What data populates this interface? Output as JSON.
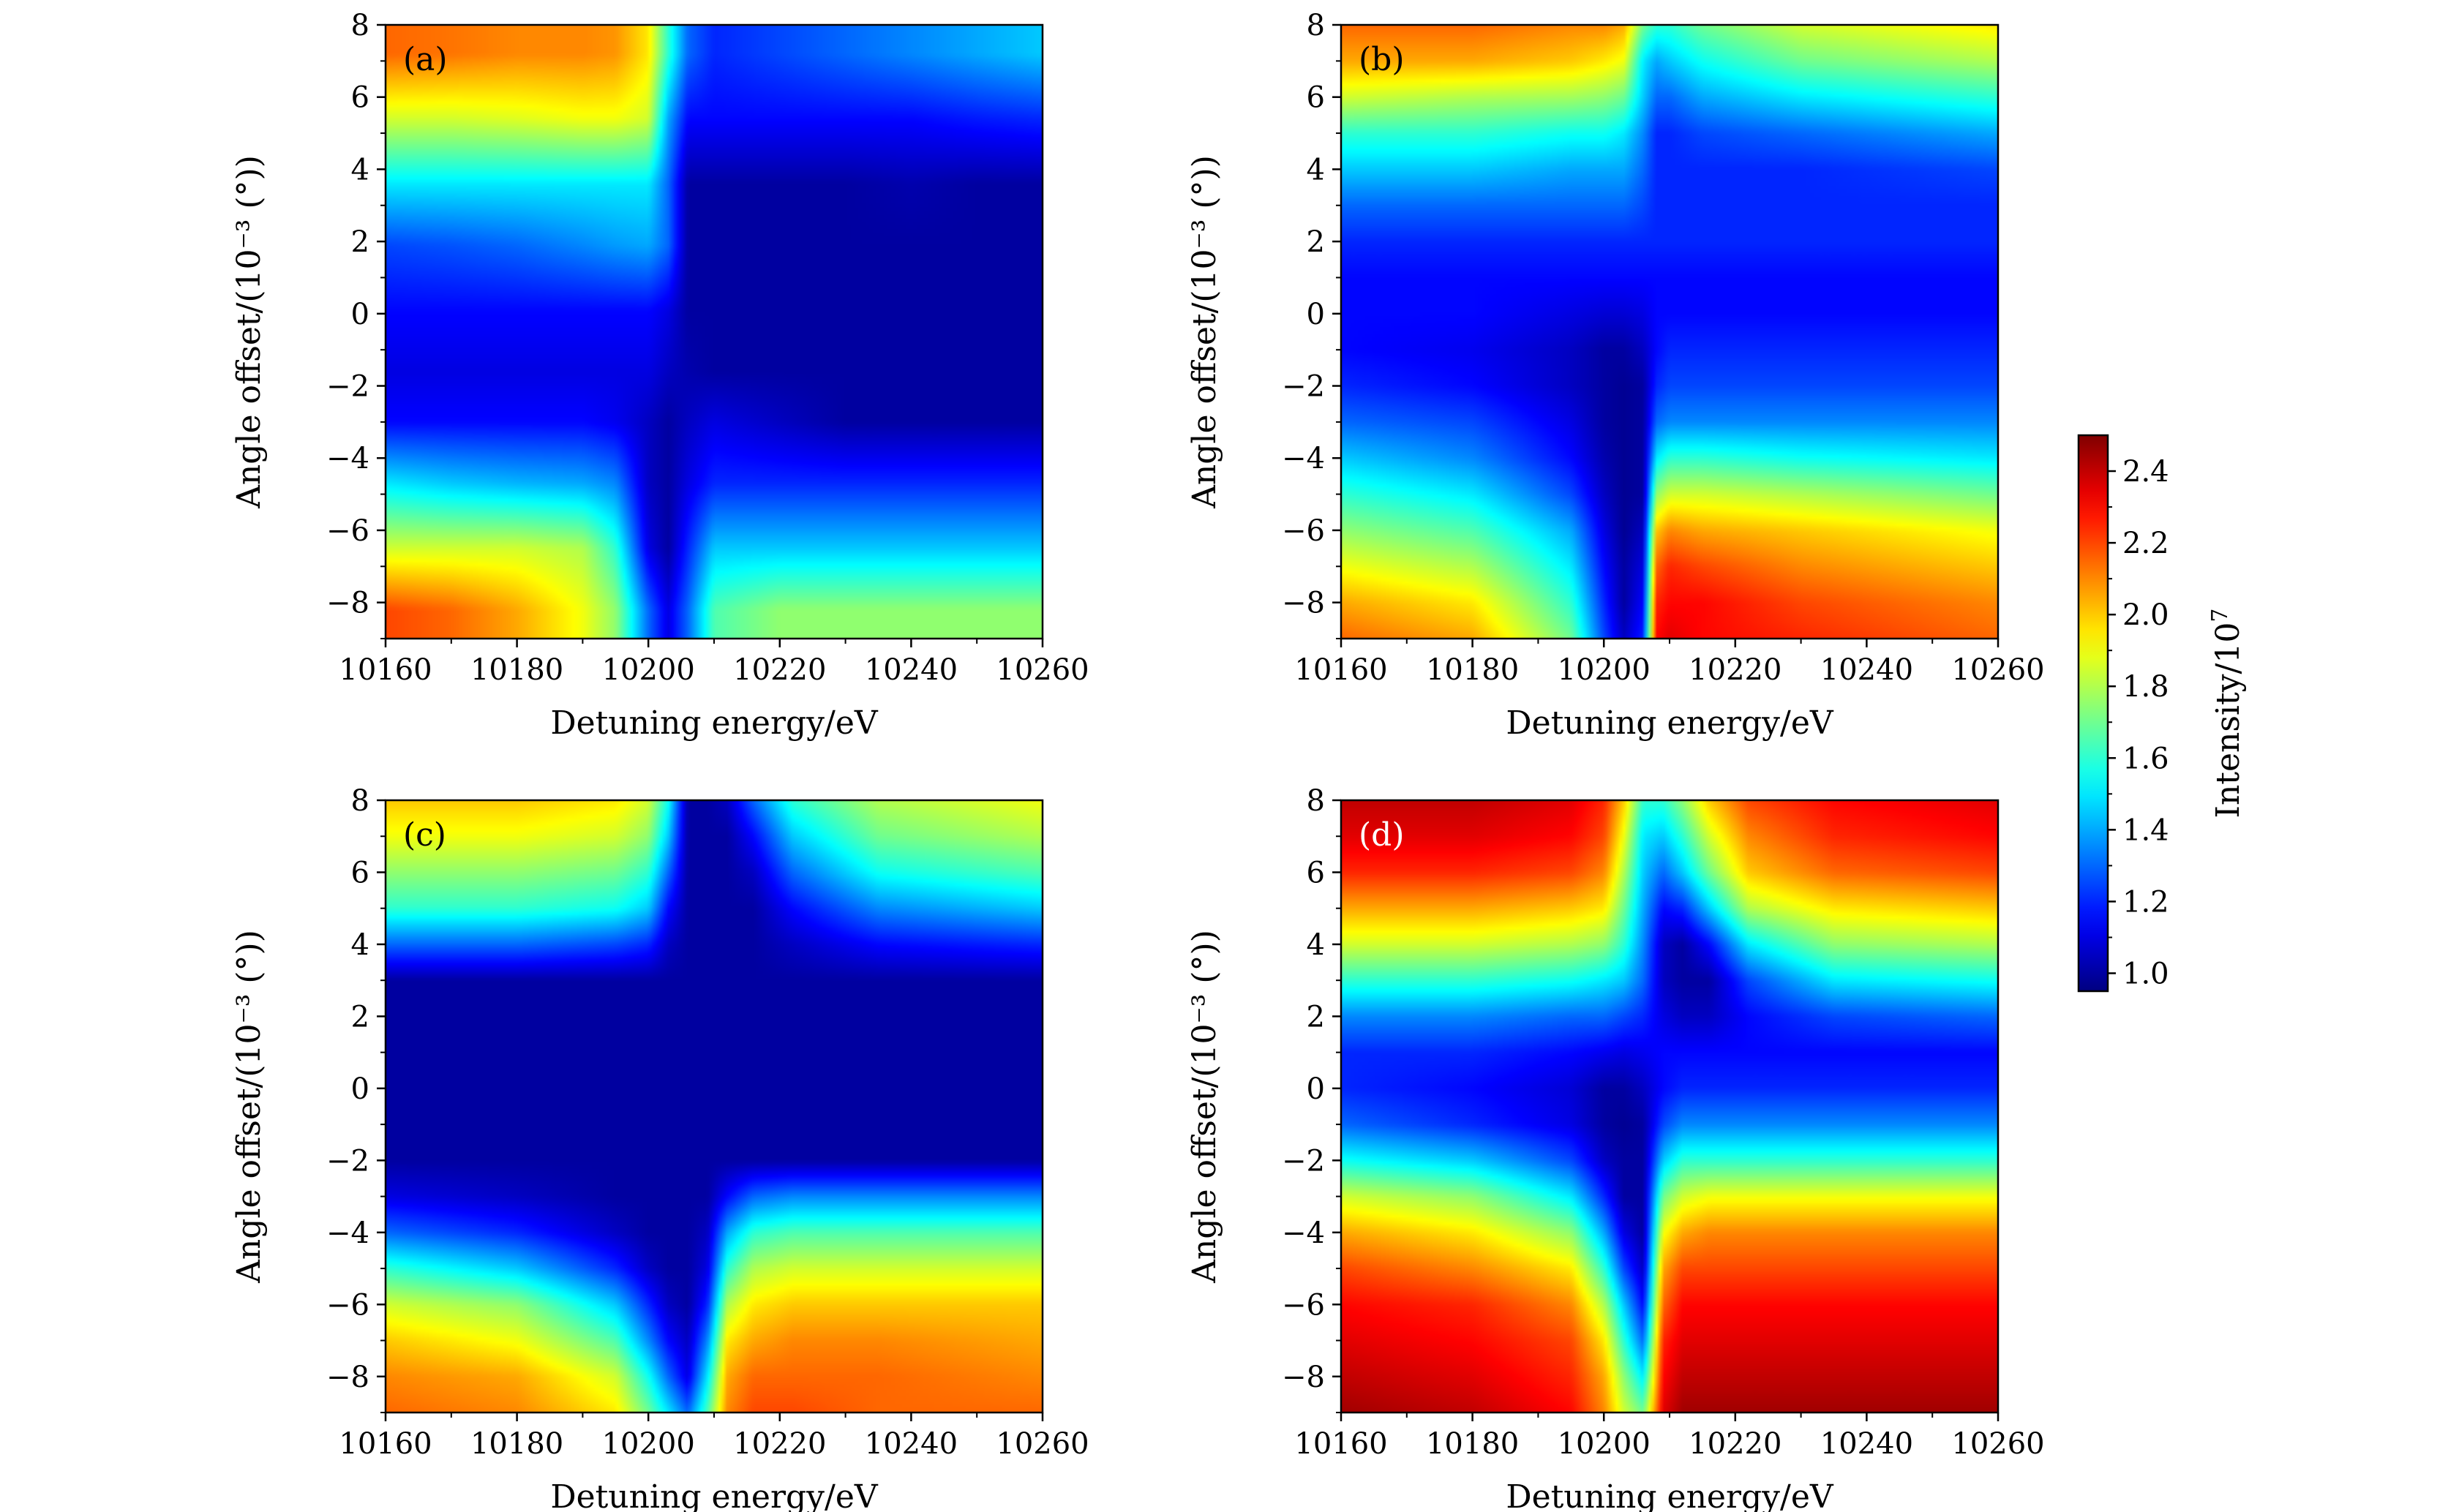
{
  "chart_data": [
    {
      "type": "heatmap",
      "panel_label": "(a)",
      "xlabel": "Detuning energy/eV",
      "ylabel": "Angle offset/(10⁻³ (°))",
      "xlim": [
        10160,
        10260
      ],
      "ylim": [
        -9,
        8
      ],
      "xticks": [
        "10160",
        "10180",
        "10200",
        "10220",
        "10240",
        "10260"
      ],
      "yticks": [
        "−8",
        "−6",
        "−4",
        "−2",
        "0",
        "2",
        "4",
        "6",
        "8"
      ],
      "x": [
        10160,
        10170,
        10180,
        10190,
        10195,
        10200,
        10203,
        10206,
        10210,
        10220,
        10230,
        10240,
        10250,
        10260
      ],
      "y": [
        7.2,
        5.4,
        3.6,
        1.9,
        0.1,
        -1.6,
        -3.0,
        -4.7,
        -6.5,
        -8.2
      ],
      "z": [
        [
          2.15,
          2.13,
          2.1,
          2.1,
          2.08,
          1.95,
          1.6,
          1.3,
          1.2,
          1.25,
          1.3,
          1.35,
          1.4,
          1.45
        ],
        [
          1.85,
          1.85,
          1.87,
          1.9,
          1.9,
          1.85,
          1.4,
          1.15,
          1.15,
          1.15,
          1.15,
          1.15,
          1.18,
          1.2
        ],
        [
          1.5,
          1.5,
          1.5,
          1.5,
          1.5,
          1.5,
          1.3,
          1.0,
          1.0,
          1.0,
          1.0,
          1.02,
          1.0,
          1.0
        ],
        [
          1.25,
          1.27,
          1.3,
          1.35,
          1.38,
          1.4,
          1.3,
          1.0,
          1.0,
          1.0,
          1.0,
          1.0,
          1.0,
          1.0
        ],
        [
          1.15,
          1.15,
          1.15,
          1.15,
          1.15,
          1.15,
          1.1,
          1.0,
          1.0,
          1.0,
          1.0,
          1.0,
          1.0,
          1.0
        ],
        [
          1.1,
          1.1,
          1.1,
          1.1,
          1.1,
          1.1,
          1.05,
          1.02,
          1.0,
          1.0,
          1.0,
          1.0,
          1.0,
          1.0
        ],
        [
          1.15,
          1.15,
          1.15,
          1.15,
          1.12,
          1.05,
          1.0,
          1.05,
          1.1,
          1.05,
          1.0,
          1.0,
          1.0,
          1.0
        ],
        [
          1.5,
          1.45,
          1.42,
          1.4,
          1.35,
          1.05,
          1.0,
          1.1,
          1.2,
          1.2,
          1.2,
          1.2,
          1.2,
          1.2
        ],
        [
          1.85,
          1.85,
          1.85,
          1.8,
          1.6,
          1.1,
          1.0,
          1.2,
          1.45,
          1.45,
          1.45,
          1.45,
          1.45,
          1.45
        ],
        [
          2.2,
          2.15,
          2.05,
          1.9,
          1.75,
          1.3,
          1.1,
          1.3,
          1.65,
          1.75,
          1.75,
          1.75,
          1.75,
          1.75
        ]
      ]
    },
    {
      "type": "heatmap",
      "panel_label": "(b)",
      "xlabel": "Detuning energy/eV",
      "ylabel": "Angle offset/(10⁻³ (°))",
      "xlim": [
        10160,
        10260
      ],
      "ylim": [
        -9,
        8
      ],
      "xticks": [
        "10160",
        "10180",
        "10200",
        "10220",
        "10240",
        "10260"
      ],
      "yticks": [
        "−8",
        "−6",
        "−4",
        "−2",
        "0",
        "2",
        "4",
        "6",
        "8"
      ],
      "x": [
        10160,
        10180,
        10195,
        10200,
        10203,
        10206,
        10208,
        10210,
        10215,
        10230,
        10260
      ],
      "y": [
        8,
        7,
        6,
        5,
        4,
        3,
        2,
        1,
        0,
        -1,
        -2,
        -3,
        -4,
        -5,
        -6,
        -7,
        -8,
        -9
      ],
      "z": [
        [
          2.15,
          2.15,
          2.1,
          2.1,
          2.05,
          1.7,
          1.6,
          1.6,
          1.7,
          1.85,
          1.95
        ],
        [
          2.05,
          2.05,
          2.0,
          1.95,
          1.9,
          1.5,
          1.4,
          1.45,
          1.55,
          1.7,
          1.8
        ],
        [
          1.85,
          1.8,
          1.78,
          1.75,
          1.7,
          1.45,
          1.3,
          1.3,
          1.4,
          1.5,
          1.6
        ],
        [
          1.6,
          1.6,
          1.55,
          1.55,
          1.5,
          1.35,
          1.2,
          1.2,
          1.25,
          1.3,
          1.4
        ],
        [
          1.45,
          1.45,
          1.4,
          1.4,
          1.4,
          1.3,
          1.2,
          1.2,
          1.2,
          1.2,
          1.25
        ],
        [
          1.3,
          1.3,
          1.3,
          1.3,
          1.3,
          1.25,
          1.2,
          1.2,
          1.2,
          1.2,
          1.2
        ],
        [
          1.2,
          1.2,
          1.2,
          1.2,
          1.2,
          1.2,
          1.2,
          1.2,
          1.2,
          1.2,
          1.2
        ],
        [
          1.15,
          1.15,
          1.15,
          1.15,
          1.15,
          1.15,
          1.15,
          1.15,
          1.15,
          1.15,
          1.15
        ],
        [
          1.15,
          1.15,
          1.1,
          1.08,
          1.08,
          1.1,
          1.15,
          1.15,
          1.15,
          1.15,
          1.15
        ],
        [
          1.15,
          1.12,
          1.05,
          1.0,
          1.0,
          1.05,
          1.15,
          1.2,
          1.2,
          1.2,
          1.2
        ],
        [
          1.2,
          1.15,
          1.05,
          1.0,
          0.98,
          1.0,
          1.2,
          1.25,
          1.25,
          1.25,
          1.25
        ],
        [
          1.3,
          1.25,
          1.1,
          1.0,
          0.98,
          1.0,
          1.3,
          1.35,
          1.35,
          1.35,
          1.35
        ],
        [
          1.45,
          1.35,
          1.15,
          1.02,
          0.98,
          1.0,
          1.5,
          1.6,
          1.6,
          1.55,
          1.5
        ],
        [
          1.6,
          1.5,
          1.25,
          1.05,
          0.98,
          1.0,
          1.75,
          1.85,
          1.85,
          1.8,
          1.7
        ],
        [
          1.75,
          1.65,
          1.4,
          1.1,
          0.98,
          1.05,
          2.0,
          2.1,
          2.05,
          2.0,
          1.9
        ],
        [
          1.9,
          1.8,
          1.5,
          1.15,
          1.0,
          1.1,
          2.15,
          2.25,
          2.2,
          2.1,
          2.0
        ],
        [
          2.05,
          1.95,
          1.6,
          1.2,
          1.0,
          1.15,
          2.25,
          2.3,
          2.3,
          2.2,
          2.1
        ],
        [
          2.15,
          2.05,
          1.7,
          1.25,
          1.05,
          1.2,
          2.3,
          2.35,
          2.3,
          2.25,
          2.15
        ]
      ]
    },
    {
      "type": "heatmap",
      "panel_label": "(c)",
      "xlabel": "Detuning energy/eV",
      "ylabel": "Angle offset/(10⁻³ (°))",
      "xlim": [
        10160,
        10260
      ],
      "ylim": [
        -9,
        8
      ],
      "xticks": [
        "10160",
        "10180",
        "10200",
        "10220",
        "10240",
        "10260"
      ],
      "yticks": [
        "−8",
        "−6",
        "−4",
        "−2",
        "0",
        "2",
        "4",
        "6",
        "8"
      ],
      "x": [
        10160,
        10180,
        10195,
        10200,
        10203,
        10206,
        10209,
        10212,
        10216,
        10222,
        10235,
        10260
      ],
      "y": [
        8,
        7,
        6,
        5,
        4,
        3,
        2,
        1,
        0,
        -1,
        -2,
        -3,
        -4,
        -5,
        -6,
        -7,
        -8,
        -9
      ],
      "z": [
        [
          2.0,
          2.0,
          1.95,
          1.85,
          1.55,
          1.0,
          1.0,
          1.05,
          1.3,
          1.6,
          1.8,
          1.9
        ],
        [
          1.9,
          1.9,
          1.85,
          1.75,
          1.45,
          1.0,
          1.0,
          1.0,
          1.15,
          1.45,
          1.7,
          1.8
        ],
        [
          1.75,
          1.75,
          1.7,
          1.6,
          1.3,
          1.0,
          1.0,
          1.0,
          1.05,
          1.3,
          1.55,
          1.65
        ],
        [
          1.6,
          1.6,
          1.55,
          1.45,
          1.15,
          1.0,
          1.0,
          1.0,
          1.0,
          1.15,
          1.35,
          1.45
        ],
        [
          1.3,
          1.3,
          1.25,
          1.2,
          1.05,
          1.0,
          1.0,
          1.0,
          1.0,
          1.05,
          1.15,
          1.2
        ],
        [
          1.0,
          1.0,
          1.0,
          1.0,
          1.0,
          1.0,
          1.0,
          1.0,
          1.0,
          1.0,
          1.0,
          1.0
        ],
        [
          1.0,
          1.0,
          1.0,
          1.0,
          1.0,
          1.0,
          1.0,
          1.0,
          1.0,
          1.0,
          1.0,
          1.0
        ],
        [
          1.0,
          1.0,
          1.0,
          1.0,
          1.0,
          1.0,
          1.0,
          1.0,
          1.0,
          1.0,
          1.0,
          1.0
        ],
        [
          1.0,
          1.0,
          1.0,
          1.0,
          1.0,
          1.0,
          1.0,
          1.0,
          1.0,
          1.0,
          1.0,
          1.0
        ],
        [
          1.0,
          1.0,
          1.0,
          1.0,
          1.0,
          1.0,
          1.0,
          1.0,
          1.0,
          1.0,
          1.0,
          1.0
        ],
        [
          1.0,
          1.0,
          1.0,
          1.0,
          1.0,
          1.0,
          1.0,
          1.0,
          1.0,
          1.0,
          1.0,
          1.0
        ],
        [
          1.1,
          1.05,
          1.0,
          1.0,
          1.0,
          1.0,
          1.0,
          1.15,
          1.3,
          1.35,
          1.35,
          1.35
        ],
        [
          1.3,
          1.2,
          1.05,
          1.0,
          1.0,
          1.0,
          1.05,
          1.4,
          1.6,
          1.65,
          1.65,
          1.65
        ],
        [
          1.6,
          1.45,
          1.2,
          1.05,
          1.0,
          1.0,
          1.1,
          1.6,
          1.8,
          1.85,
          1.85,
          1.85
        ],
        [
          1.85,
          1.75,
          1.45,
          1.2,
          1.05,
          1.0,
          1.2,
          1.8,
          1.95,
          2.0,
          2.0,
          2.0
        ],
        [
          2.0,
          1.9,
          1.65,
          1.35,
          1.15,
          1.05,
          1.35,
          1.95,
          2.05,
          2.1,
          2.1,
          2.05
        ],
        [
          2.1,
          2.05,
          1.85,
          1.55,
          1.3,
          1.1,
          1.5,
          2.05,
          2.15,
          2.15,
          2.15,
          2.1
        ],
        [
          2.15,
          2.1,
          1.95,
          1.7,
          1.5,
          1.3,
          1.65,
          2.1,
          2.2,
          2.2,
          2.15,
          2.15
        ]
      ]
    },
    {
      "type": "heatmap",
      "panel_label": "(d)",
      "xlabel": "Detuning energy/eV",
      "ylabel": "Angle offset/(10⁻³ (°))",
      "xlim": [
        10160,
        10260
      ],
      "ylim": [
        -9,
        8
      ],
      "xticks": [
        "10160",
        "10180",
        "10200",
        "10220",
        "10240",
        "10260"
      ],
      "yticks": [
        "−8",
        "−6",
        "−4",
        "−2",
        "0",
        "2",
        "4",
        "6",
        "8"
      ],
      "x": [
        10160,
        10180,
        10195,
        10200,
        10203,
        10206,
        10209,
        10212,
        10216,
        10222,
        10235,
        10260
      ],
      "y": [
        8,
        7,
        6,
        5,
        4,
        3,
        2,
        1,
        0,
        -1,
        -2,
        -3,
        -4,
        -5,
        -6,
        -7,
        -8,
        -9
      ],
      "z": [
        [
          2.4,
          2.4,
          2.35,
          2.25,
          2.0,
          1.6,
          1.6,
          1.75,
          2.0,
          2.2,
          2.3,
          2.35
        ],
        [
          2.35,
          2.35,
          2.3,
          2.2,
          1.9,
          1.5,
          1.45,
          1.6,
          1.85,
          2.1,
          2.25,
          2.3
        ],
        [
          2.25,
          2.25,
          2.2,
          2.1,
          1.8,
          1.45,
          1.3,
          1.45,
          1.7,
          2.0,
          2.15,
          2.2
        ],
        [
          2.05,
          2.05,
          2.0,
          1.95,
          1.7,
          1.4,
          1.15,
          1.2,
          1.45,
          1.8,
          1.95,
          2.0
        ],
        [
          1.85,
          1.85,
          1.8,
          1.75,
          1.6,
          1.35,
          1.05,
          1.0,
          1.15,
          1.5,
          1.75,
          1.8
        ],
        [
          1.6,
          1.6,
          1.55,
          1.5,
          1.45,
          1.3,
          1.05,
          1.0,
          1.0,
          1.25,
          1.5,
          1.55
        ],
        [
          1.35,
          1.35,
          1.3,
          1.3,
          1.25,
          1.2,
          1.1,
          1.05,
          1.05,
          1.15,
          1.25,
          1.3
        ],
        [
          1.2,
          1.2,
          1.15,
          1.12,
          1.1,
          1.12,
          1.15,
          1.15,
          1.15,
          1.15,
          1.15,
          1.15
        ],
        [
          1.2,
          1.15,
          1.08,
          1.0,
          1.0,
          1.05,
          1.15,
          1.2,
          1.2,
          1.2,
          1.2,
          1.2
        ],
        [
          1.3,
          1.2,
          1.1,
          1.0,
          0.98,
          1.0,
          1.25,
          1.35,
          1.35,
          1.35,
          1.35,
          1.35
        ],
        [
          1.55,
          1.45,
          1.25,
          1.05,
          1.0,
          1.0,
          1.45,
          1.6,
          1.6,
          1.6,
          1.6,
          1.6
        ],
        [
          1.85,
          1.75,
          1.5,
          1.2,
          1.0,
          1.0,
          1.7,
          1.85,
          1.9,
          1.9,
          1.9,
          1.9
        ],
        [
          2.05,
          1.95,
          1.75,
          1.4,
          1.1,
          1.0,
          1.9,
          2.05,
          2.1,
          2.1,
          2.1,
          2.1
        ],
        [
          2.2,
          2.1,
          1.95,
          1.6,
          1.25,
          1.05,
          2.05,
          2.2,
          2.2,
          2.2,
          2.2,
          2.2
        ],
        [
          2.3,
          2.25,
          2.1,
          1.8,
          1.45,
          1.15,
          2.15,
          2.3,
          2.3,
          2.3,
          2.3,
          2.3
        ],
        [
          2.35,
          2.3,
          2.2,
          1.95,
          1.6,
          1.3,
          2.25,
          2.35,
          2.35,
          2.35,
          2.35,
          2.35
        ],
        [
          2.4,
          2.35,
          2.25,
          2.05,
          1.75,
          1.5,
          2.3,
          2.4,
          2.4,
          2.4,
          2.4,
          2.4
        ],
        [
          2.45,
          2.4,
          2.3,
          2.1,
          1.85,
          1.7,
          2.35,
          2.45,
          2.45,
          2.45,
          2.45,
          2.45
        ]
      ]
    }
  ],
  "colorbar": {
    "label": "Intensity/10",
    "label_exponent": "7",
    "range": [
      0.95,
      2.5
    ],
    "ticks": [
      "1.0",
      "1.2",
      "1.4",
      "1.6",
      "1.8",
      "2.0",
      "2.2",
      "2.4"
    ],
    "colormap": "jet"
  }
}
